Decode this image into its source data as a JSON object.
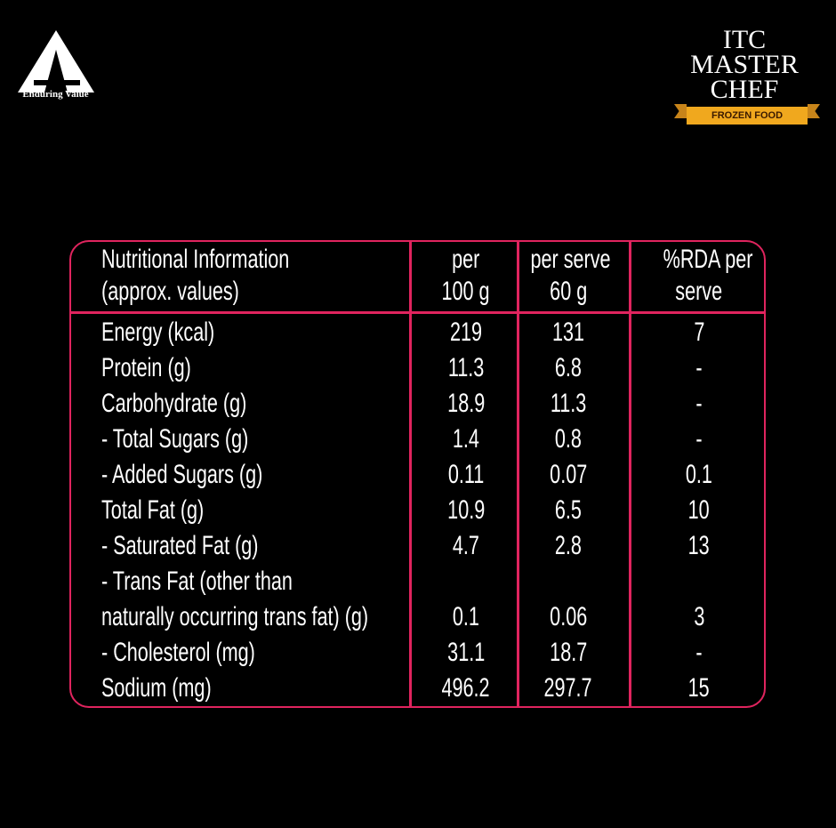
{
  "logos": {
    "itc_tagline": "Enduring Value",
    "masterchef": {
      "line1": "ITC",
      "line2": "MASTER",
      "line3": "CHEF",
      "ribbon": "FROZEN FOOD"
    }
  },
  "colors": {
    "border": "#e0245e",
    "ribbon": "#f0a81e"
  },
  "table": {
    "header": {
      "col0": [
        "Nutritional Information",
        "(approx. values)"
      ],
      "col1": [
        "per",
        "100 g"
      ],
      "col2": [
        "per serve",
        "60 g"
      ],
      "col3": [
        "%RDA per",
        "serve"
      ]
    },
    "rows": [
      {
        "label": "Energy (kcal)",
        "per100": "219",
        "perserve": "131",
        "rda": "7"
      },
      {
        "label": "Protein (g)",
        "per100": "11.3",
        "perserve": "6.8",
        "rda": "-"
      },
      {
        "label": "Carbohydrate (g)",
        "per100": "18.9",
        "perserve": "11.3",
        "rda": "-"
      },
      {
        "label": "- Total Sugars (g)",
        "per100": "1.4",
        "perserve": "0.8",
        "rda": "-"
      },
      {
        "label": "- Added Sugars (g)",
        "per100": "0.11",
        "perserve": "0.07",
        "rda": "0.1"
      },
      {
        "label": "Total Fat (g)",
        "per100": "10.9",
        "perserve": "6.5",
        "rda": "10"
      },
      {
        "label": " - Saturated Fat (g)",
        "per100": "4.7",
        "perserve": "2.8",
        "rda": "13"
      },
      {
        "label": "- Trans Fat (other than",
        "per100": "",
        "perserve": "",
        "rda": ""
      },
      {
        "label": "naturally occurring trans fat) (g)",
        "per100": "0.1",
        "perserve": "0.06",
        "rda": "3"
      },
      {
        "label": "- Cholesterol (mg)",
        "per100": "31.1",
        "perserve": "18.7",
        "rda": "-"
      },
      {
        "label": "Sodium (mg)",
        "per100": "496.2",
        "perserve": "297.7",
        "rda": "15"
      }
    ]
  }
}
